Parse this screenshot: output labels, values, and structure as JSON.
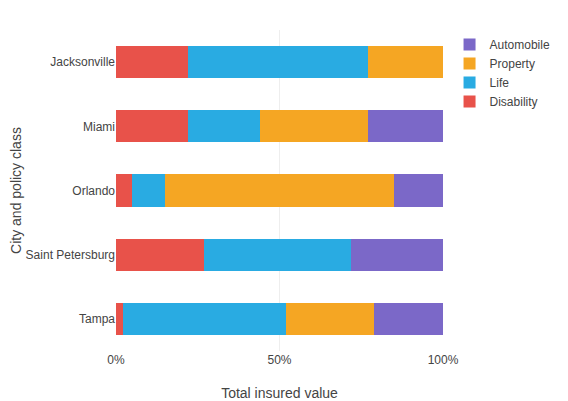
{
  "chart_data": {
    "type": "bar",
    "orientation": "horizontal",
    "stacked": true,
    "categories": [
      "Tampa",
      "Saint Petersburg",
      "Orlando",
      "Miami",
      "Jacksonville"
    ],
    "series": [
      {
        "name": "Disability",
        "color": "#e8524a",
        "values": [
          0.02,
          0.27,
          0.05,
          0.22,
          0.22
        ]
      },
      {
        "name": "Life",
        "color": "#29abe2",
        "values": [
          0.5,
          0.45,
          0.1,
          0.22,
          0.55
        ]
      },
      {
        "name": "Property",
        "color": "#f5a623",
        "values": [
          0.27,
          0.0,
          0.7,
          0.33,
          0.23
        ]
      },
      {
        "name": "Automobile",
        "color": "#7b68c8",
        "values": [
          0.21,
          0.28,
          0.15,
          0.23,
          0.0
        ]
      }
    ],
    "xlabel": "Total insured value",
    "ylabel": "City and policy class",
    "xlim": [
      0,
      1.0
    ],
    "xticks": [
      {
        "value": 0,
        "label": "0%"
      },
      {
        "value": 0.5,
        "label": "50%"
      },
      {
        "value": 1.0,
        "label": "100%"
      }
    ],
    "grid": true,
    "legend": "right"
  }
}
